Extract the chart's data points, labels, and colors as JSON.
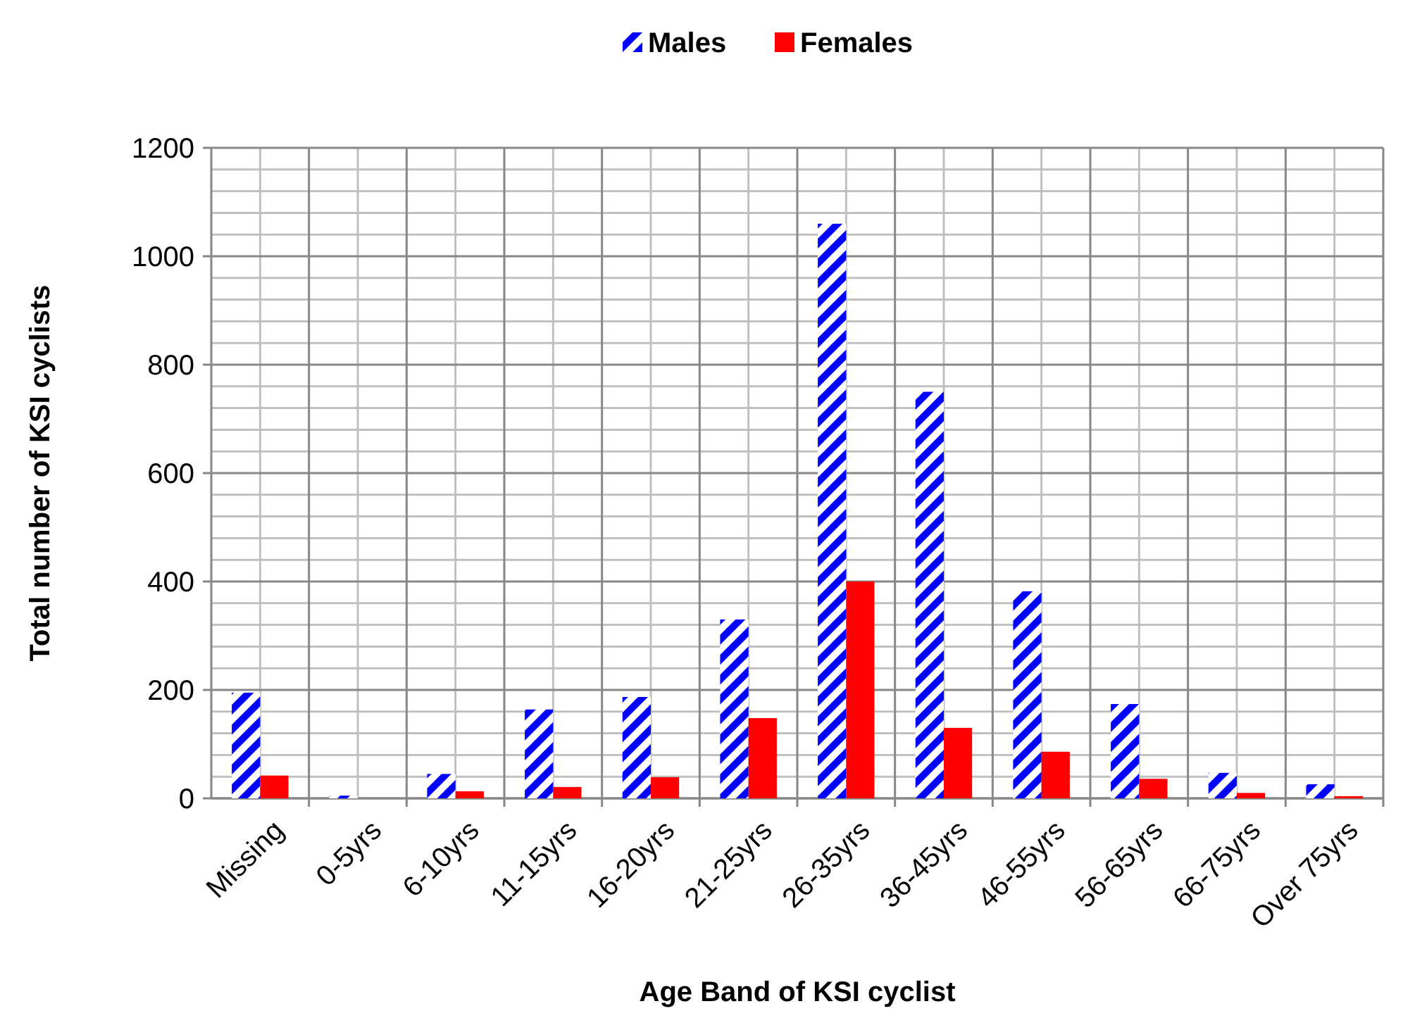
{
  "chart_data": {
    "type": "bar",
    "xlabel": "Age Band of KSI cyclist",
    "ylabel": "Total number of KSI cyclists",
    "categories": [
      "Missing",
      "0-5yrs",
      "6-10yrs",
      "11-15yrs",
      "16-20yrs",
      "21-25yrs",
      "26-35yrs",
      "36-45yrs",
      "46-55yrs",
      "56-65yrs",
      "66-75yrs",
      "Over 75yrs"
    ],
    "series": [
      {
        "name": "Males",
        "color": "#0000ff",
        "values": [
          195,
          5,
          45,
          164,
          187,
          330,
          1060,
          750,
          382,
          174,
          47,
          26
        ]
      },
      {
        "name": "Females",
        "color": "#ff0000",
        "values": [
          42,
          0,
          13,
          21,
          39,
          148,
          400,
          130,
          86,
          36,
          10,
          4
        ]
      }
    ],
    "ylim": [
      0,
      1200
    ],
    "yticks": [
      0,
      200,
      400,
      600,
      800,
      1000,
      1200
    ],
    "grid": true,
    "legend": "top"
  }
}
